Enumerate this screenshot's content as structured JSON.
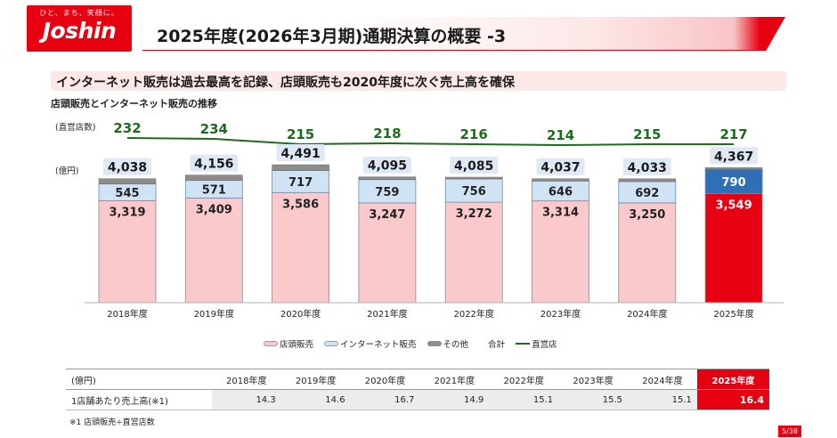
{
  "logo": {
    "tagline": "ひと、まち、笑顔に。",
    "name": "Joshin"
  },
  "header": {
    "title": "2025年度(2026年3月期)通期決算の概要 -3"
  },
  "subtitle": "インターネット販売は過去最高を記録、店頭販売も2020年度に次ぐ売上高を確保",
  "section_label": "店頭販売とインターネット販売の推移",
  "stores_label": "(直営店数)",
  "yen_label": "(億円)",
  "colors": {
    "brand_red": "#e60012",
    "store_sales": "#f9c9cc",
    "internet_sales": "#cfe3f5",
    "other": "#8c8c8c",
    "store_line": "#1e6b1e",
    "highlight_store": "#e60012",
    "highlight_internet": "#2e6fb5"
  },
  "chart_data": {
    "type": "bar",
    "stacked": true,
    "categories": [
      "2018年度",
      "2019年度",
      "2020年度",
      "2021年度",
      "2022年度",
      "2023年度",
      "2024年度",
      "2025年度"
    ],
    "series": [
      {
        "name": "店頭販売",
        "values": [
          3319,
          3409,
          3586,
          3247,
          3272,
          3314,
          3250,
          3549
        ]
      },
      {
        "name": "インターネット販売",
        "values": [
          545,
          571,
          717,
          759,
          756,
          646,
          692,
          790
        ]
      },
      {
        "name": "その他",
        "values": [
          174,
          176,
          188,
          89,
          57,
          77,
          91,
          28
        ]
      }
    ],
    "totals": [
      4038,
      4156,
      4491,
      4095,
      4085,
      4037,
      4033,
      4367
    ],
    "store_counts": [
      232,
      234,
      215,
      218,
      216,
      214,
      215,
      217
    ],
    "store_label_y": [
      149,
      150,
      156,
      155,
      156,
      157,
      156,
      156
    ],
    "legend": [
      "店頭販売",
      "インターネット販売",
      "その他",
      "合計",
      "直営店"
    ],
    "highlight_category": "2025年度"
  },
  "table": {
    "unit": "(億円)",
    "years": [
      "2018年度",
      "2019年度",
      "2020年度",
      "2021年度",
      "2022年度",
      "2023年度",
      "2024年度",
      "2025年度"
    ],
    "row_label": "1店舗あたり売上高(※1)",
    "values": [
      "14.3",
      "14.6",
      "16.7",
      "14.9",
      "15.1",
      "15.5",
      "15.1",
      "16.4"
    ]
  },
  "footnote": "※1 店頭販売÷直営店数",
  "page": "5/38"
}
